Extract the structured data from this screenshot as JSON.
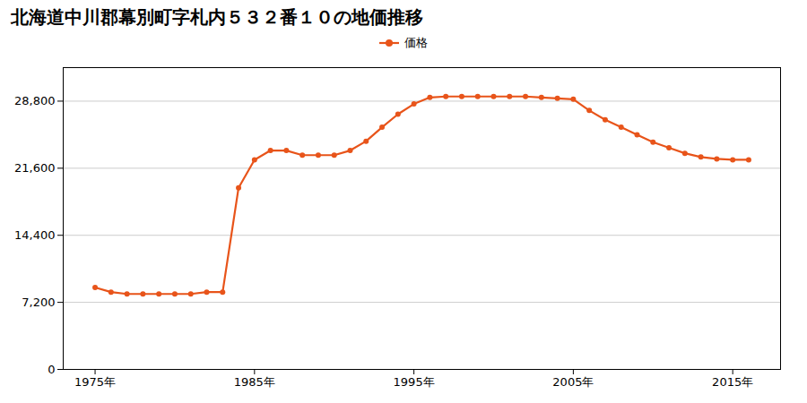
{
  "chart_data": {
    "type": "line",
    "title": "北海道中川郡幕別町字札内５３２番１０の地価推移",
    "x": [
      1975,
      1976,
      1977,
      1978,
      1979,
      1980,
      1981,
      1982,
      1983,
      1984,
      1985,
      1986,
      1987,
      1988,
      1989,
      1990,
      1991,
      1992,
      1993,
      1994,
      1995,
      1996,
      1997,
      1998,
      1999,
      2000,
      2001,
      2002,
      2003,
      2004,
      2005,
      2006,
      2007,
      2008,
      2009,
      2010,
      2011,
      2012,
      2013,
      2014,
      2015,
      2016
    ],
    "series": [
      {
        "name": "価格",
        "color": "#e8541a",
        "marker": "circle",
        "values": [
          8800,
          8300,
          8100,
          8100,
          8100,
          8100,
          8100,
          8300,
          8300,
          19500,
          22500,
          23500,
          23500,
          23000,
          23000,
          23000,
          23500,
          24500,
          26000,
          27400,
          28500,
          29200,
          29300,
          29300,
          29300,
          29300,
          29300,
          29300,
          29200,
          29100,
          29000,
          27800,
          26800,
          26000,
          25200,
          24400,
          23800,
          23200,
          22800,
          22600,
          22500,
          22500
        ]
      }
    ],
    "xlim": [
      1973,
      2018
    ],
    "xticks": [
      {
        "value": 1975,
        "label": "1975年"
      },
      {
        "value": 1985,
        "label": "1985年"
      },
      {
        "value": 1995,
        "label": "1995年"
      },
      {
        "value": 2005,
        "label": "2005年"
      },
      {
        "value": 2015,
        "label": "2015年"
      }
    ],
    "ylim": [
      0,
      32400
    ],
    "yticks": [
      0,
      {
        "value": 7200,
        "label": "7,200"
      },
      {
        "value": 14400,
        "label": "14,400"
      },
      {
        "value": 21600,
        "label": "21,600"
      },
      {
        "value": 28800,
        "label": "28,800"
      }
    ],
    "grid": true,
    "legend": "top"
  }
}
